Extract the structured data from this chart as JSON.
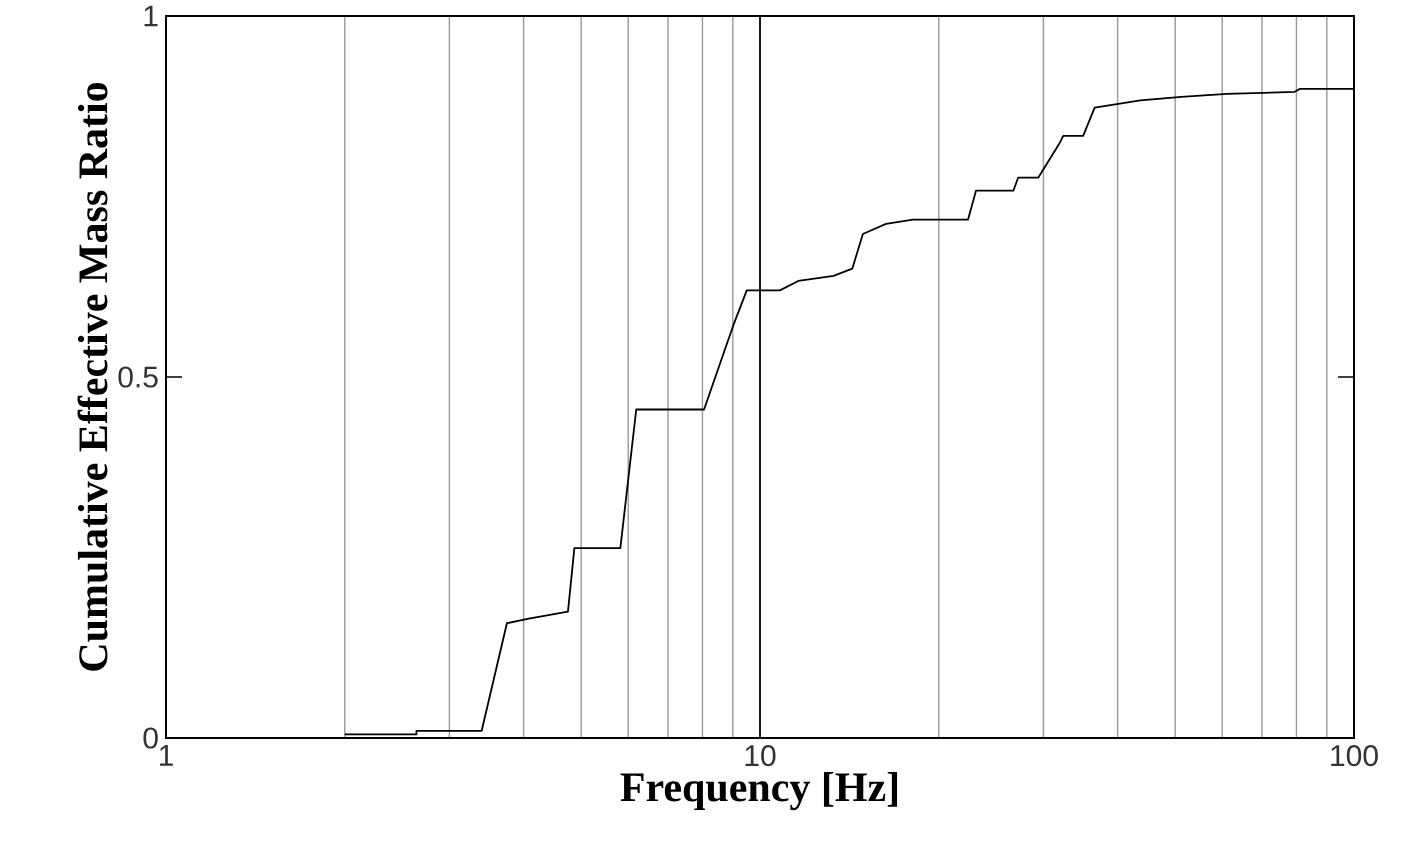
{
  "chart_data": {
    "type": "line",
    "xlabel": "Frequency [Hz]",
    "ylabel": "Cumulative Effective Mass Ratio",
    "log": "x",
    "grid": "x",
    "line_style": "solid",
    "xlim": [
      1,
      100
    ],
    "ylim": [
      0,
      1
    ],
    "xticks": [
      1,
      10,
      100
    ],
    "yticks": [
      0,
      0.5,
      1
    ],
    "series": [
      {
        "color": "#000000",
        "x": [
          2.0,
          2.64,
          2.64,
          3.4,
          3.75,
          4.06,
          4.75,
          4.87,
          5.82,
          6.19,
          8.05,
          9.04,
          9.5,
          10.8,
          11.6,
          13.3,
          14.3,
          14.9,
          16.3,
          18.1,
          22.4,
          23.1,
          26.7,
          27.2,
          29.4,
          31.9,
          32.4,
          35.0,
          36.6,
          43.7,
          51.2,
          61.1,
          79.5,
          81,
          100
        ],
        "values": [
          0.005,
          0.005,
          0.01,
          0.01,
          0.159,
          0.165,
          0.175,
          0.263,
          0.263,
          0.455,
          0.455,
          0.574,
          0.62,
          0.62,
          0.633,
          0.64,
          0.65,
          0.698,
          0.712,
          0.718,
          0.718,
          0.758,
          0.758,
          0.776,
          0.776,
          0.823,
          0.834,
          0.834,
          0.873,
          0.883,
          0.888,
          0.892,
          0.895,
          0.899,
          0.899
        ]
      }
    ]
  }
}
